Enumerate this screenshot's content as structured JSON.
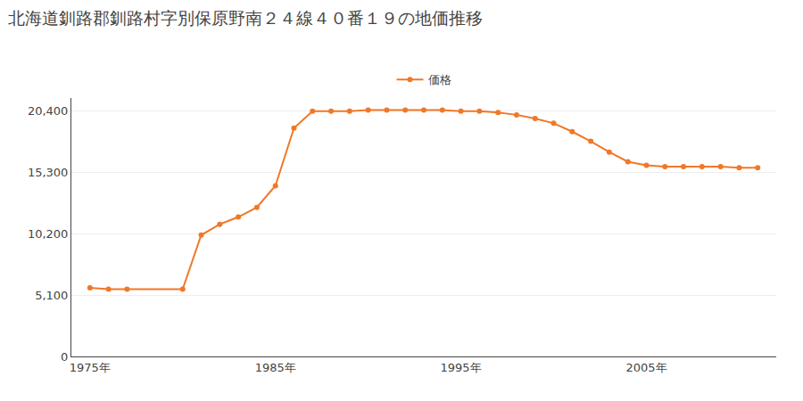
{
  "chart_data": {
    "type": "line",
    "title": "北海道釧路郡釧路村字別保原野南２４線４０番１９の地価推移",
    "x": [
      1975,
      1976,
      1977,
      1980,
      1981,
      1982,
      1983,
      1984,
      1985,
      1986,
      1987,
      1988,
      1989,
      1990,
      1991,
      1992,
      1993,
      1994,
      1995,
      1996,
      1997,
      1998,
      1999,
      2000,
      2001,
      2002,
      2003,
      2004,
      2005,
      2006,
      2007,
      2008,
      2009,
      2010,
      2011
    ],
    "series": [
      {
        "name": "価格",
        "color": "#f07828",
        "marker": "circle",
        "line_style": "solid",
        "values": [
          5700,
          5600,
          5600,
          5600,
          10100,
          11000,
          11600,
          12400,
          14200,
          19000,
          20400,
          20400,
          20400,
          20500,
          20500,
          20500,
          20500,
          20500,
          20400,
          20400,
          20300,
          20100,
          19800,
          19400,
          18700,
          17900,
          17000,
          16200,
          15900,
          15800,
          15800,
          15800,
          15800,
          15700,
          15700
        ]
      }
    ],
    "xlim": [
      1974,
      2012
    ],
    "xticks": [
      {
        "value": 1975,
        "label": "1975年"
      },
      {
        "value": 1985,
        "label": "1985年"
      },
      {
        "value": 1995,
        "label": "1995年"
      },
      {
        "value": 2005,
        "label": "2005年"
      }
    ],
    "ylim": [
      0,
      21500
    ],
    "yticks": [
      0,
      {
        "value": 5100,
        "label": "5,100"
      },
      {
        "value": 10200,
        "label": "10,200"
      },
      {
        "value": 15300,
        "label": "15,300"
      },
      {
        "value": 20400,
        "label": "20,400"
      }
    ],
    "grid": "y",
    "legend": "top"
  }
}
